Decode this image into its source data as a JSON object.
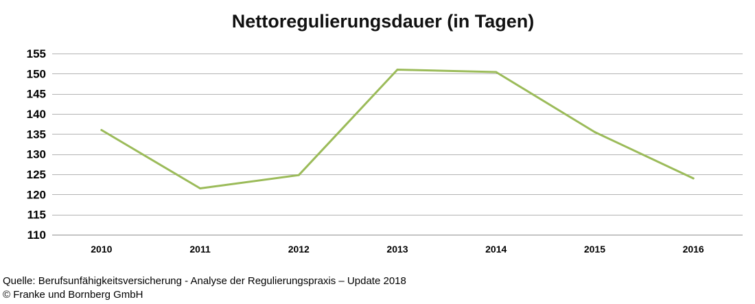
{
  "chart_data": {
    "type": "line",
    "title": "Nettoregulierungsdauer (in Tagen)",
    "xlabel": "",
    "ylabel": "",
    "categories": [
      "2010",
      "2011",
      "2012",
      "2013",
      "2014",
      "2015",
      "2016"
    ],
    "series": [
      {
        "values": [
          136,
          121.5,
          124.8,
          151,
          150.4,
          135.5,
          124
        ]
      }
    ],
    "ylim": [
      110,
      155
    ],
    "yticks": [
      110,
      115,
      120,
      125,
      130,
      135,
      140,
      145,
      150,
      155
    ],
    "grid": true,
    "legend": "none",
    "colors": {
      "line": "#9bbb59",
      "grid": "#b3b3b3"
    }
  },
  "footer": {
    "source": "Quelle: Berufsunfähigkeitsversicherung - Analyse der Regulierungspraxis – Update 2018",
    "copyright": "© Franke und Bornberg GmbH"
  }
}
